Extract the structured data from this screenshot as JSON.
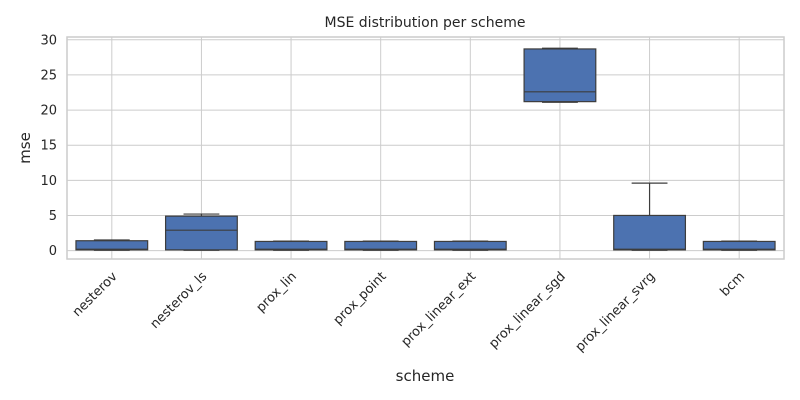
{
  "chart_data": {
    "type": "box",
    "title": "MSE distribution per scheme",
    "xlabel": "scheme",
    "ylabel": "mse",
    "ylim": [
      -1.2,
      30.4
    ],
    "yticks": [
      0,
      5,
      10,
      15,
      20,
      25,
      30
    ],
    "grid": true,
    "box_color": "#4c72b0",
    "line_color": "#3d3d3d",
    "categories": [
      "nesterov",
      "nesterov_ls",
      "prox_lin",
      "prox_point",
      "prox_linear_ext",
      "prox_linear_sgd",
      "prox_linear_svrg",
      "bcm"
    ],
    "boxes": [
      {
        "category": "nesterov",
        "whisker_low": 0.05,
        "q1": 0.1,
        "median": 0.2,
        "q3": 1.4,
        "whisker_high": 1.5
      },
      {
        "category": "nesterov_ls",
        "whisker_low": 0.05,
        "q1": 0.1,
        "median": 2.9,
        "q3": 4.9,
        "whisker_high": 5.2
      },
      {
        "category": "prox_lin",
        "whisker_low": 0.05,
        "q1": 0.1,
        "median": 0.2,
        "q3": 1.3,
        "whisker_high": 1.35
      },
      {
        "category": "prox_point",
        "whisker_low": 0.05,
        "q1": 0.1,
        "median": 0.2,
        "q3": 1.3,
        "whisker_high": 1.35
      },
      {
        "category": "prox_linear_ext",
        "whisker_low": 0.05,
        "q1": 0.1,
        "median": 0.2,
        "q3": 1.3,
        "whisker_high": 1.35
      },
      {
        "category": "prox_linear_sgd",
        "whisker_low": 21.1,
        "q1": 21.2,
        "median": 22.6,
        "q3": 28.7,
        "whisker_high": 28.8
      },
      {
        "category": "prox_linear_svrg",
        "whisker_low": 0.05,
        "q1": 0.1,
        "median": 0.2,
        "q3": 5.0,
        "whisker_high": 9.6
      },
      {
        "category": "bcm",
        "whisker_low": 0.05,
        "q1": 0.1,
        "median": 0.2,
        "q3": 1.3,
        "whisker_high": 1.35
      }
    ]
  }
}
